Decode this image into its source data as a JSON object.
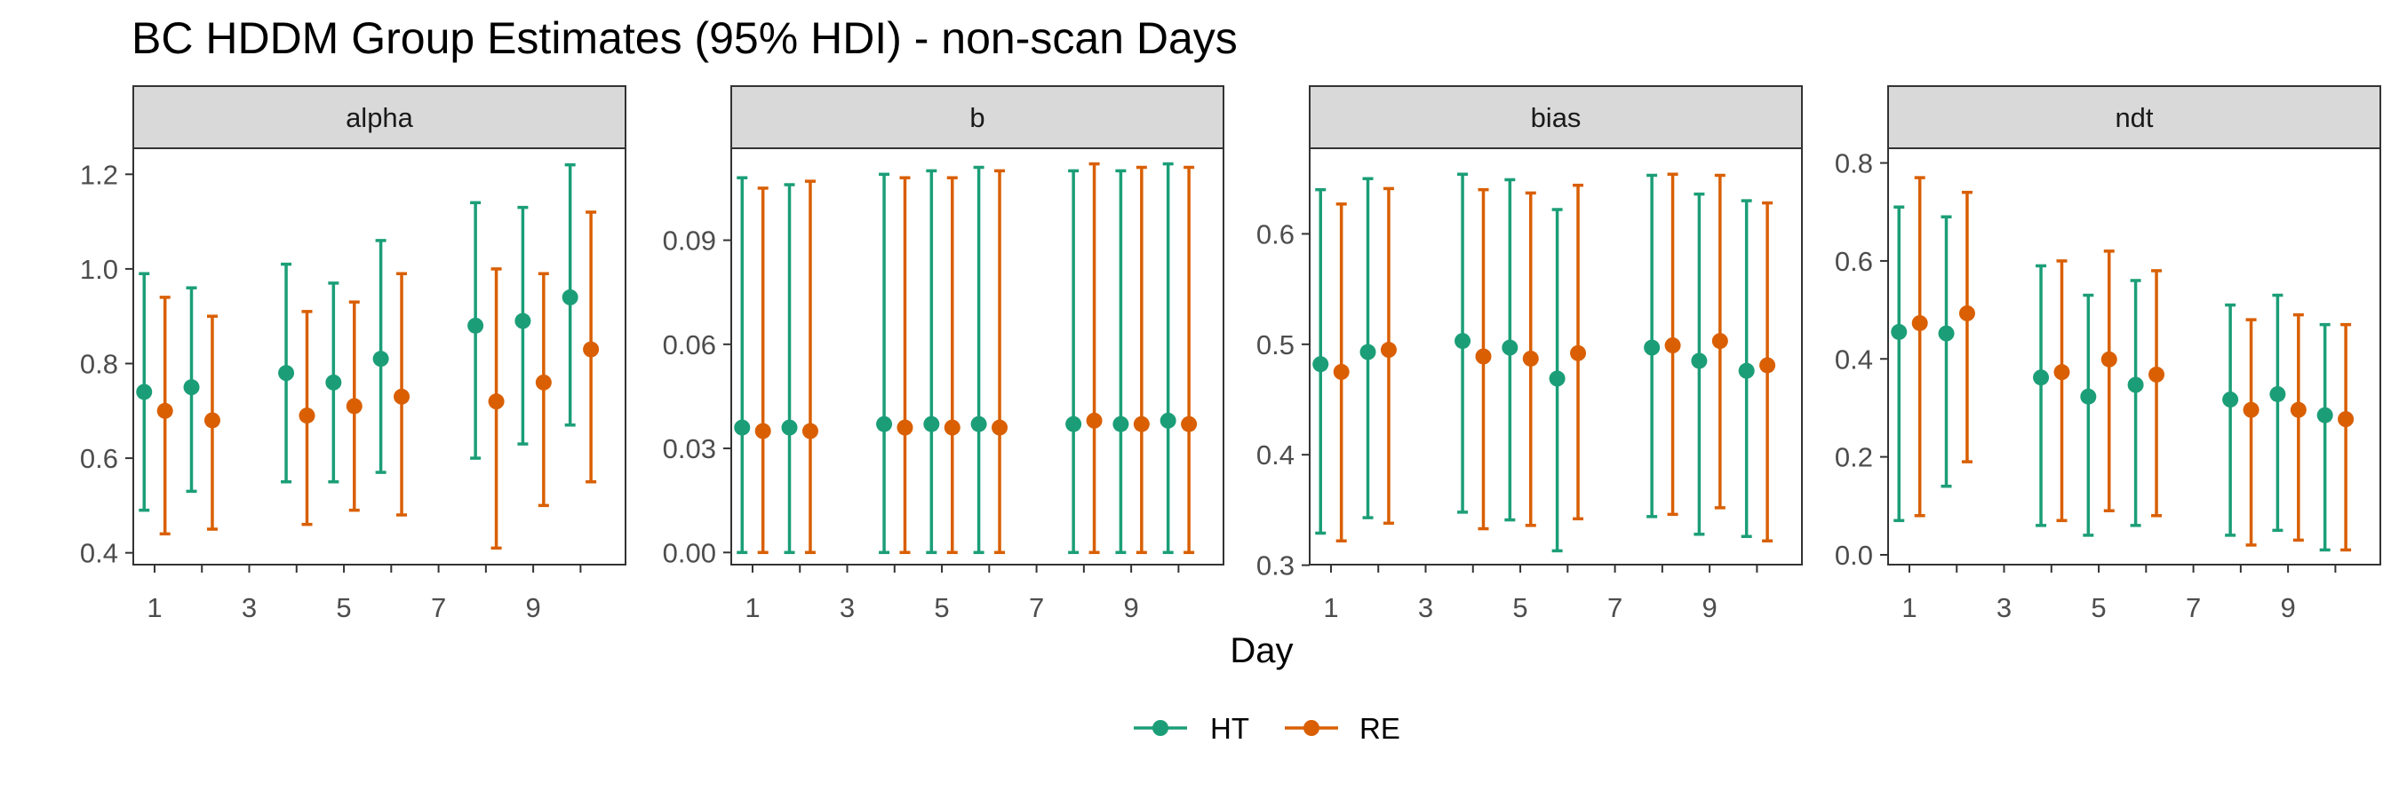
{
  "chart_data": {
    "type": "scatter",
    "subtype": "point-range with error bars, faceted",
    "title": "BC HDDM Group Estimates (95% HDI) - non-scan Days",
    "xlabel": "Day",
    "x_ticks": [
      1,
      3,
      5,
      7,
      9
    ],
    "xlim": [
      0.55,
      10.95
    ],
    "grid": false,
    "legend": {
      "position": "bottom",
      "entries": [
        {
          "name": "HT",
          "color": "#1B9E77"
        },
        {
          "name": "RE",
          "color": "#D95F02"
        }
      ]
    },
    "dodge": 0.22,
    "facets": [
      {
        "label": "alpha",
        "ylim": [
          0.375,
          1.255
        ],
        "y_ticks": [
          0.4,
          0.6,
          0.8,
          1.0,
          1.2
        ],
        "tick_labels": [
          "0.4",
          "0.6",
          "0.8",
          "1.0",
          "1.2"
        ],
        "series": [
          {
            "name": "HT",
            "points": [
              {
                "day": 1,
                "mean": 0.74,
                "lo": 0.49,
                "hi": 0.99
              },
              {
                "day": 2,
                "mean": 0.75,
                "lo": 0.53,
                "hi": 0.96
              },
              {
                "day": 4,
                "mean": 0.78,
                "lo": 0.55,
                "hi": 1.01
              },
              {
                "day": 5,
                "mean": 0.76,
                "lo": 0.55,
                "hi": 0.97
              },
              {
                "day": 6,
                "mean": 0.81,
                "lo": 0.57,
                "hi": 1.06
              },
              {
                "day": 8,
                "mean": 0.88,
                "lo": 0.6,
                "hi": 1.14
              },
              {
                "day": 9,
                "mean": 0.89,
                "lo": 0.63,
                "hi": 1.13
              },
              {
                "day": 10,
                "mean": 0.94,
                "lo": 0.67,
                "hi": 1.22
              }
            ]
          },
          {
            "name": "RE",
            "points": [
              {
                "day": 1,
                "mean": 0.7,
                "lo": 0.44,
                "hi": 0.94
              },
              {
                "day": 2,
                "mean": 0.68,
                "lo": 0.45,
                "hi": 0.9
              },
              {
                "day": 4,
                "mean": 0.69,
                "lo": 0.46,
                "hi": 0.91
              },
              {
                "day": 5,
                "mean": 0.71,
                "lo": 0.49,
                "hi": 0.93
              },
              {
                "day": 6,
                "mean": 0.73,
                "lo": 0.48,
                "hi": 0.99
              },
              {
                "day": 8,
                "mean": 0.72,
                "lo": 0.41,
                "hi": 1.0
              },
              {
                "day": 9,
                "mean": 0.76,
                "lo": 0.5,
                "hi": 0.99
              },
              {
                "day": 10,
                "mean": 0.83,
                "lo": 0.55,
                "hi": 1.12
              }
            ]
          }
        ]
      },
      {
        "label": "b",
        "ylim": [
          -0.0035,
          0.1165
        ],
        "y_ticks": [
          0.0,
          0.03,
          0.06,
          0.09
        ],
        "tick_labels": [
          "0.00",
          "0.03",
          "0.06",
          "0.09"
        ],
        "series": [
          {
            "name": "HT",
            "points": [
              {
                "day": 1,
                "mean": 0.036,
                "lo": 0.0,
                "hi": 0.108
              },
              {
                "day": 2,
                "mean": 0.036,
                "lo": 0.0,
                "hi": 0.106
              },
              {
                "day": 4,
                "mean": 0.037,
                "lo": 0.0,
                "hi": 0.109
              },
              {
                "day": 5,
                "mean": 0.037,
                "lo": 0.0,
                "hi": 0.11
              },
              {
                "day": 6,
                "mean": 0.037,
                "lo": 0.0,
                "hi": 0.111
              },
              {
                "day": 8,
                "mean": 0.037,
                "lo": 0.0,
                "hi": 0.11
              },
              {
                "day": 9,
                "mean": 0.037,
                "lo": 0.0,
                "hi": 0.11
              },
              {
                "day": 10,
                "mean": 0.038,
                "lo": 0.0,
                "hi": 0.112
              }
            ]
          },
          {
            "name": "RE",
            "points": [
              {
                "day": 1,
                "mean": 0.035,
                "lo": 0.0,
                "hi": 0.105
              },
              {
                "day": 2,
                "mean": 0.035,
                "lo": 0.0,
                "hi": 0.107
              },
              {
                "day": 4,
                "mean": 0.036,
                "lo": 0.0,
                "hi": 0.108
              },
              {
                "day": 5,
                "mean": 0.036,
                "lo": 0.0,
                "hi": 0.108
              },
              {
                "day": 6,
                "mean": 0.036,
                "lo": 0.0,
                "hi": 0.11
              },
              {
                "day": 8,
                "mean": 0.038,
                "lo": 0.0,
                "hi": 0.112
              },
              {
                "day": 9,
                "mean": 0.037,
                "lo": 0.0,
                "hi": 0.111
              },
              {
                "day": 10,
                "mean": 0.037,
                "lo": 0.0,
                "hi": 0.111
              }
            ]
          }
        ]
      },
      {
        "label": "bias",
        "ylim": [
          0.3005,
          0.6775
        ],
        "y_ticks": [
          0.3,
          0.4,
          0.5,
          0.6
        ],
        "tick_labels": [
          "0.3",
          "0.4",
          "0.5",
          "0.6"
        ],
        "series": [
          {
            "name": "HT",
            "points": [
              {
                "day": 1,
                "mean": 0.482,
                "lo": 0.329,
                "hi": 0.64
              },
              {
                "day": 2,
                "mean": 0.493,
                "lo": 0.343,
                "hi": 0.65
              },
              {
                "day": 4,
                "mean": 0.503,
                "lo": 0.348,
                "hi": 0.654
              },
              {
                "day": 5,
                "mean": 0.497,
                "lo": 0.341,
                "hi": 0.649
              },
              {
                "day": 6,
                "mean": 0.469,
                "lo": 0.313,
                "hi": 0.622
              },
              {
                "day": 8,
                "mean": 0.497,
                "lo": 0.344,
                "hi": 0.653
              },
              {
                "day": 9,
                "mean": 0.485,
                "lo": 0.328,
                "hi": 0.636
              },
              {
                "day": 10,
                "mean": 0.476,
                "lo": 0.326,
                "hi": 0.63
              }
            ]
          },
          {
            "name": "RE",
            "points": [
              {
                "day": 1,
                "mean": 0.475,
                "lo": 0.322,
                "hi": 0.627
              },
              {
                "day": 2,
                "mean": 0.495,
                "lo": 0.338,
                "hi": 0.641
              },
              {
                "day": 4,
                "mean": 0.489,
                "lo": 0.333,
                "hi": 0.64
              },
              {
                "day": 5,
                "mean": 0.487,
                "lo": 0.336,
                "hi": 0.637
              },
              {
                "day": 6,
                "mean": 0.492,
                "lo": 0.342,
                "hi": 0.644
              },
              {
                "day": 8,
                "mean": 0.499,
                "lo": 0.346,
                "hi": 0.654
              },
              {
                "day": 9,
                "mean": 0.503,
                "lo": 0.352,
                "hi": 0.653
              },
              {
                "day": 10,
                "mean": 0.481,
                "lo": 0.322,
                "hi": 0.628
              }
            ]
          }
        ]
      },
      {
        "label": "ndt",
        "ylim": [
          -0.02,
          0.83
        ],
        "y_ticks": [
          0.0,
          0.2,
          0.4,
          0.6,
          0.8
        ],
        "tick_labels": [
          "0.0",
          "0.2",
          "0.4",
          "0.6",
          "0.8"
        ],
        "series": [
          {
            "name": "HT",
            "points": [
              {
                "day": 1,
                "mean": 0.455,
                "lo": 0.07,
                "hi": 0.71
              },
              {
                "day": 2,
                "mean": 0.452,
                "lo": 0.14,
                "hi": 0.69
              },
              {
                "day": 4,
                "mean": 0.362,
                "lo": 0.06,
                "hi": 0.59
              },
              {
                "day": 5,
                "mean": 0.323,
                "lo": 0.04,
                "hi": 0.53
              },
              {
                "day": 6,
                "mean": 0.347,
                "lo": 0.06,
                "hi": 0.56
              },
              {
                "day": 8,
                "mean": 0.317,
                "lo": 0.04,
                "hi": 0.51
              },
              {
                "day": 9,
                "mean": 0.328,
                "lo": 0.05,
                "hi": 0.53
              },
              {
                "day": 10,
                "mean": 0.285,
                "lo": 0.01,
                "hi": 0.47
              }
            ]
          },
          {
            "name": "RE",
            "points": [
              {
                "day": 1,
                "mean": 0.473,
                "lo": 0.08,
                "hi": 0.77
              },
              {
                "day": 2,
                "mean": 0.493,
                "lo": 0.19,
                "hi": 0.74
              },
              {
                "day": 4,
                "mean": 0.373,
                "lo": 0.07,
                "hi": 0.6
              },
              {
                "day": 5,
                "mean": 0.399,
                "lo": 0.09,
                "hi": 0.62
              },
              {
                "day": 6,
                "mean": 0.368,
                "lo": 0.08,
                "hi": 0.58
              },
              {
                "day": 8,
                "mean": 0.296,
                "lo": 0.02,
                "hi": 0.48
              },
              {
                "day": 9,
                "mean": 0.296,
                "lo": 0.03,
                "hi": 0.49
              },
              {
                "day": 10,
                "mean": 0.277,
                "lo": 0.01,
                "hi": 0.47
              }
            ]
          }
        ]
      }
    ]
  }
}
